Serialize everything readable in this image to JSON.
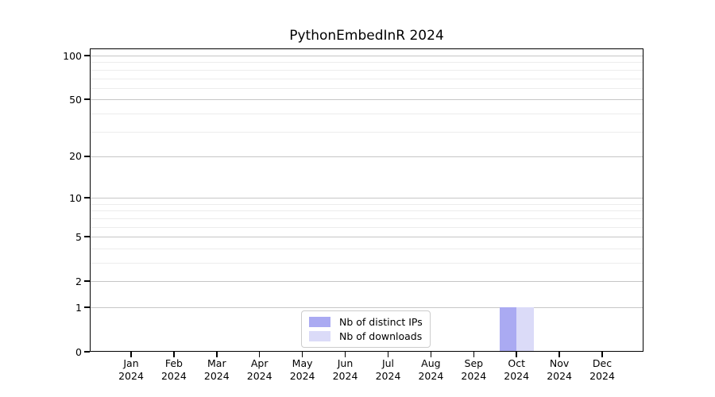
{
  "chart_data": {
    "type": "bar",
    "title": "PythonEmbedInR 2024",
    "categories": [
      "Jan 2024",
      "Feb 2024",
      "Mar 2024",
      "Apr 2024",
      "May 2024",
      "Jun 2024",
      "Jul 2024",
      "Aug 2024",
      "Sep 2024",
      "Oct 2024",
      "Nov 2024",
      "Dec 2024"
    ],
    "series": [
      {
        "name": "Nb of distinct IPs",
        "color": "#aaaaf2",
        "values": [
          0,
          0,
          0,
          0,
          0,
          0,
          0,
          0,
          0,
          1,
          0,
          0
        ]
      },
      {
        "name": "Nb of downloads",
        "color": "#dbdbf8",
        "values": [
          0,
          0,
          0,
          0,
          0,
          0,
          0,
          0,
          0,
          1,
          0,
          0
        ]
      }
    ],
    "yscale": "log1p",
    "ylim": [
      0,
      112
    ],
    "yticks_major": [
      0,
      1,
      2,
      5,
      10,
      20,
      50,
      100
    ],
    "yticks_minor": [
      3,
      4,
      6,
      7,
      8,
      9,
      30,
      40,
      60,
      70,
      80,
      90
    ],
    "grid": "horizontal",
    "legend_position": "lower center (inside plot)"
  },
  "colors": {
    "grid_major": "#c6c6c6",
    "grid_minor": "#ececec",
    "spine": "#000000",
    "background": "#ffffff"
  }
}
